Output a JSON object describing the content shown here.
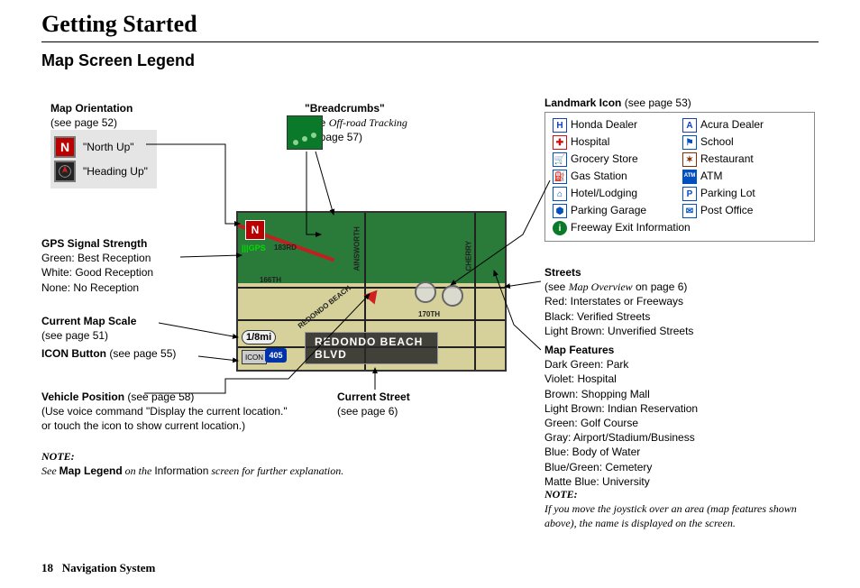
{
  "page": {
    "title": "Getting Started",
    "section": "Map Screen Legend",
    "footer_page": "18",
    "footer_label": "Navigation System"
  },
  "map_orientation": {
    "heading": "Map Orientation",
    "sub": "(see page 52)",
    "north_up": "\"North Up\"",
    "heading_up": "\"Heading Up\""
  },
  "breadcrumbs": {
    "heading": "\"Breadcrumbs\"",
    "sub1": "(see ",
    "sub_italic": "Off-road Tracking",
    "sub2": " on page 57)"
  },
  "landmark": {
    "heading": "Landmark Icon",
    "sub": " (see page 53)",
    "items_left": [
      "Honda Dealer",
      "Hospital",
      "Grocery Store",
      "Gas Station",
      "Hotel/Lodging",
      "Parking Garage"
    ],
    "items_right": [
      "Acura Dealer",
      "School",
      "Restaurant",
      "ATM",
      "Parking Lot",
      "Post Office"
    ],
    "full_row": "Freeway Exit Information",
    "icon_styles": {
      "honda": {
        "bg": "#fff",
        "fg": "#1040c0",
        "text": "H",
        "border": "#1040c0"
      },
      "acura": {
        "bg": "#fff",
        "fg": "#1040c0",
        "text": "A",
        "border": "#1040c0"
      },
      "hospital": {
        "bg": "#fff",
        "fg": "#d01010",
        "text": "✚",
        "border": "#d01010"
      },
      "school": {
        "bg": "#fff",
        "fg": "#0050c0",
        "text": "⚑",
        "border": "#0050c0"
      },
      "grocery": {
        "bg": "#fff",
        "fg": "#0050c0",
        "text": "🛒",
        "border": "#0050c0"
      },
      "restaurant": {
        "bg": "#fff",
        "fg": "#8a2a00",
        "text": "✶",
        "border": "#8a2a00"
      },
      "gas": {
        "bg": "#fff",
        "fg": "#0050c0",
        "text": "⛽",
        "border": "#0050c0"
      },
      "atm": {
        "bg": "#0050c0",
        "fg": "#fff",
        "text": "ATM",
        "border": "#0050c0"
      },
      "hotel": {
        "bg": "#fff",
        "fg": "#0050c0",
        "text": "⌂",
        "border": "#0050c0"
      },
      "parkinglot": {
        "bg": "#fff",
        "fg": "#0050c0",
        "text": "P",
        "border": "#0050c0"
      },
      "garage": {
        "bg": "#fff",
        "fg": "#0050c0",
        "text": "⬢",
        "border": "#0050c0"
      },
      "post": {
        "bg": "#fff",
        "fg": "#0050c0",
        "text": "✉",
        "border": "#0050c0"
      },
      "freeway": {
        "bg": "#0a7a2a",
        "fg": "#fff",
        "text": "i",
        "border": "#0a7a2a"
      }
    }
  },
  "gps": {
    "heading": "GPS Signal Strength",
    "l1": "Green: Best Reception",
    "l2": "White: Good Reception",
    "l3": "None: No Reception"
  },
  "scale": {
    "heading": "Current Map Scale",
    "sub": "(see page 51)"
  },
  "icon_btn": {
    "heading": "ICON Button",
    "sub": " (see page 55)"
  },
  "vehicle": {
    "heading": "Vehicle Position",
    "sub": " (see page 58)",
    "l1": "(Use voice command \"Display the current location.\"",
    "l2": "or touch the icon to show current location.)"
  },
  "current_street": {
    "heading": "Current Street",
    "sub": "(see page 6)"
  },
  "streets": {
    "heading": "Streets",
    "sub_pre": "(see ",
    "sub_italic": "Map Overview",
    "sub_post": " on page 6)",
    "l1": "Red: Interstates or Freeways",
    "l2": "Black: Verified Streets",
    "l3": "Light Brown: Unverified Streets"
  },
  "features": {
    "heading": "Map Features",
    "lines": [
      "Dark Green: Park",
      "Violet: Hospital",
      "Brown: Shopping Mall",
      "Light Brown: Indian Reservation",
      "Green: Golf Course",
      "Gray: Airport/Stadium/Business",
      "Blue: Body of Water",
      "Blue/Green: Cemetery",
      "Matte Blue: University"
    ]
  },
  "note_left": {
    "heading": "NOTE:",
    "pre": "See ",
    "bold": "Map Legend",
    "mid": " on the ",
    "plain": "Information",
    "post": " screen for further explanation."
  },
  "note_right": {
    "heading": "NOTE:",
    "text": "If you move the joystick over an area (map features shown above), the name is displayed on the screen."
  },
  "map": {
    "street_bar": "REDONDO BEACH BLVD",
    "north": "N",
    "scale": "1/8mi",
    "gps_label": "GPS",
    "hwy": "405",
    "icon_label": "ICON",
    "labels": {
      "l1": "183RD",
      "l2": "166TH",
      "l3": "170TH",
      "l4": "AINSWORTH",
      "l5": "REDONDO BEACH",
      "l6": "CHERRY"
    }
  }
}
